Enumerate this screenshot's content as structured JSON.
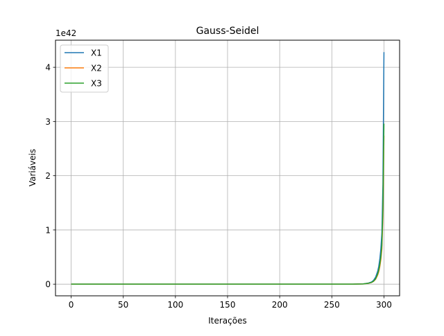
{
  "chart_data": {
    "type": "line",
    "title": "Gauss-Seidel",
    "xlabel": "Iterações",
    "ylabel": "Variáveis",
    "y_offset_label": "1e42",
    "y_scale": 1e+42,
    "xlim": [
      -15,
      315
    ],
    "ylim": [
      -0.215,
      4.5
    ],
    "x_ticks": [
      0,
      50,
      100,
      150,
      200,
      250,
      300
    ],
    "y_ticks": [
      0,
      1,
      2,
      3,
      4
    ],
    "grid": true,
    "legend_position": "top-left",
    "x": [
      0,
      50,
      100,
      150,
      200,
      250,
      270,
      280,
      285,
      288,
      290,
      292,
      294,
      295,
      296,
      297,
      298,
      299,
      300
    ],
    "series": [
      {
        "name": "X1",
        "color": "#1f77b4",
        "values": [
          0,
          0,
          0,
          0,
          0,
          0,
          0.001,
          0.005,
          0.02,
          0.04,
          0.07,
          0.13,
          0.24,
          0.33,
          0.46,
          0.65,
          0.94,
          1.85,
          4.28
        ]
      },
      {
        "name": "X2",
        "color": "#ff7f0e",
        "values": [
          0,
          0,
          0,
          0,
          0,
          0,
          0.001,
          0.004,
          0.015,
          0.03,
          0.05,
          0.09,
          0.17,
          0.23,
          0.32,
          0.45,
          0.65,
          1.25,
          2.74
        ]
      },
      {
        "name": "X3",
        "color": "#2ca02c",
        "values": [
          0,
          0,
          0,
          0,
          0,
          0,
          0.001,
          0.004,
          0.016,
          0.032,
          0.055,
          0.1,
          0.19,
          0.26,
          0.36,
          0.5,
          0.72,
          1.4,
          2.96
        ]
      }
    ]
  }
}
